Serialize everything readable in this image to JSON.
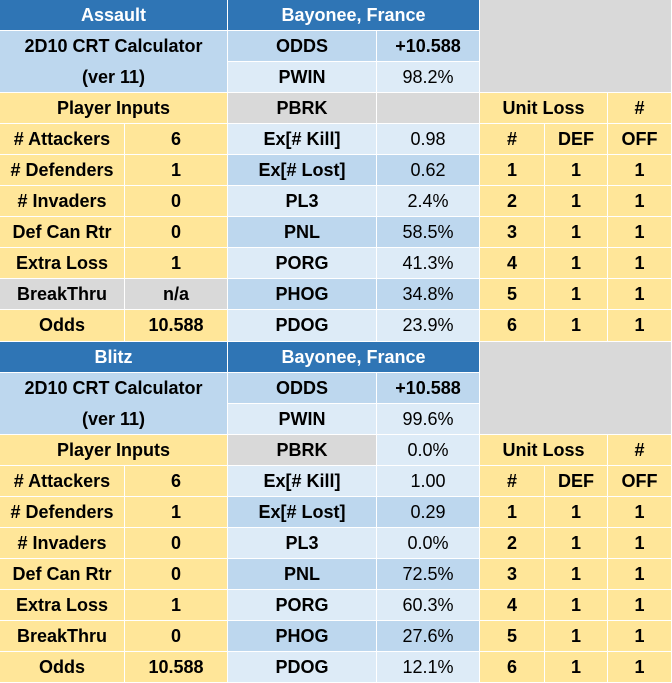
{
  "blocks": [
    {
      "title": "Assault",
      "location": "Bayonee, France",
      "calculator": "2D10 CRT Calculator",
      "version": "(ver 11)",
      "odds_label": "ODDS",
      "odds": "+10.588",
      "pwin_label": "PWIN",
      "pwin": "98.2%",
      "inputs_header": "Player Inputs",
      "pbrk_label": "PBRK",
      "unit_loss_header": "Unit Loss",
      "count_header": "#",
      "inputs": [
        [
          "# Attackers",
          "6"
        ],
        [
          "# Defenders",
          "1"
        ],
        [
          "# Invaders",
          "0"
        ],
        [
          "Def Can Rtr",
          "0"
        ],
        [
          "Extra Loss",
          "1"
        ],
        [
          "BreakThru",
          "n/a"
        ],
        [
          "Odds",
          "10.588"
        ]
      ],
      "stats": [
        [
          "Ex[# Kill]",
          "0.98"
        ],
        [
          "Ex[# Lost]",
          "0.62"
        ],
        [
          "PL3",
          "2.4%"
        ],
        [
          "PNL",
          "58.5%"
        ],
        [
          "PORG",
          "41.3%"
        ],
        [
          "PHOG",
          "34.8%"
        ],
        [
          "PDOG",
          "23.9%"
        ]
      ],
      "unit_header": [
        "#",
        "DEF",
        "OFF"
      ],
      "unit_rows": [
        [
          "1",
          "1",
          "1"
        ],
        [
          "2",
          "1",
          "1"
        ],
        [
          "3",
          "1",
          "1"
        ],
        [
          "4",
          "1",
          "1"
        ],
        [
          "5",
          "1",
          "1"
        ],
        [
          "6",
          "1",
          "1"
        ]
      ]
    },
    {
      "title": "Blitz",
      "location": "Bayonee, France",
      "calculator": "2D10 CRT Calculator",
      "version": "(ver 11)",
      "odds_label": "ODDS",
      "odds": "+10.588",
      "pwin_label": "PWIN",
      "pwin": "99.6%",
      "inputs_header": "Player Inputs",
      "pbrk_label": "PBRK",
      "pbrk": "0.0%",
      "unit_loss_header": "Unit Loss",
      "count_header": "#",
      "inputs": [
        [
          "# Attackers",
          "6"
        ],
        [
          "# Defenders",
          "1"
        ],
        [
          "# Invaders",
          "0"
        ],
        [
          "Def Can Rtr",
          "0"
        ],
        [
          "Extra Loss",
          "1"
        ],
        [
          "BreakThru",
          "0"
        ],
        [
          "Odds",
          "10.588"
        ]
      ],
      "stats": [
        [
          "Ex[# Kill]",
          "1.00"
        ],
        [
          "Ex[# Lost]",
          "0.29"
        ],
        [
          "PL3",
          "0.0%"
        ],
        [
          "PNL",
          "72.5%"
        ],
        [
          "PORG",
          "60.3%"
        ],
        [
          "PHOG",
          "27.6%"
        ],
        [
          "PDOG",
          "12.1%"
        ]
      ],
      "unit_header": [
        "#",
        "DEF",
        "OFF"
      ],
      "unit_rows": [
        [
          "1",
          "1",
          "1"
        ],
        [
          "2",
          "1",
          "1"
        ],
        [
          "3",
          "1",
          "1"
        ],
        [
          "4",
          "1",
          "1"
        ],
        [
          "5",
          "1",
          "1"
        ],
        [
          "6",
          "1",
          "1"
        ]
      ]
    }
  ]
}
